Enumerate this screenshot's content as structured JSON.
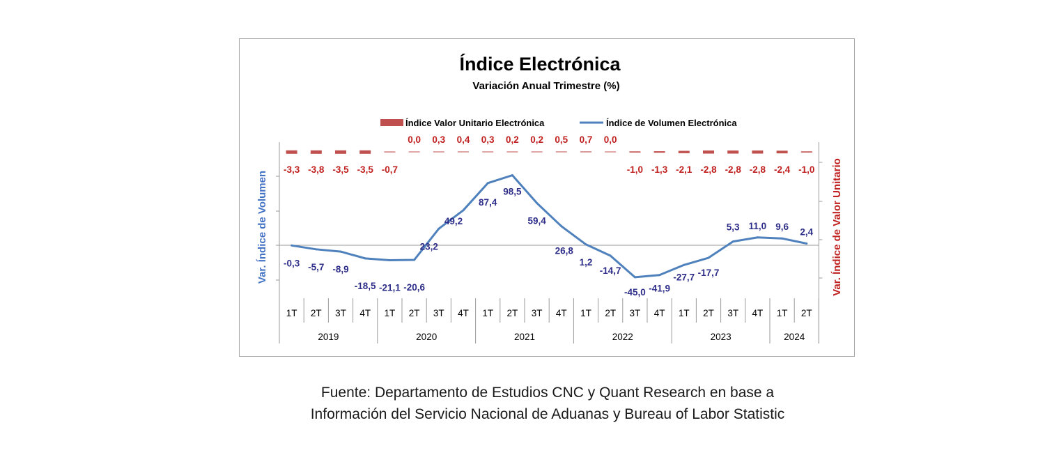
{
  "chart_data": {
    "type": "line",
    "title": "Índice Electrónica",
    "subtitle": "Variación Anual Trimestre  (%)",
    "categories": [
      "1T",
      "2T",
      "3T",
      "4T",
      "1T",
      "2T",
      "3T",
      "4T",
      "1T",
      "2T",
      "3T",
      "4T",
      "1T",
      "2T",
      "3T",
      "4T",
      "1T",
      "2T",
      "3T",
      "4T",
      "1T",
      "2T"
    ],
    "years": [
      {
        "label": "2019",
        "quarters": 4
      },
      {
        "label": "2020",
        "quarters": 4
      },
      {
        "label": "2021",
        "quarters": 4
      },
      {
        "label": "2022",
        "quarters": 4
      },
      {
        "label": "2023",
        "quarters": 4
      },
      {
        "label": "2024",
        "quarters": 2
      }
    ],
    "ylabel_left": "Var. Índice de Volumen",
    "ylabel_right": "Var. Índice de Valor Unitario",
    "legend_position": "top",
    "grid": false,
    "series": [
      {
        "name": "Índice Valor Unitario Electrónica",
        "axis": "right",
        "style": "dash",
        "color": "#c0504d",
        "values": [
          -3.3,
          -3.8,
          -3.5,
          -3.5,
          -0.7,
          0.0,
          0.3,
          0.4,
          0.3,
          0.2,
          0.2,
          0.5,
          0.7,
          0.0,
          -1.0,
          -1.3,
          -2.1,
          -2.8,
          -2.8,
          -2.8,
          -2.4,
          -1.0
        ],
        "labels": [
          "-3,3",
          "-3,8",
          "-3,5",
          "-3,5",
          "-0,7",
          "0,0",
          "0,3",
          "0,4",
          "0,3",
          "0,2",
          "0,2",
          "0,5",
          "0,7",
          "0,0",
          "-1,0",
          "-1,3",
          "-2,1",
          "-2,8",
          "-2,8",
          "-2,8",
          "-2,4",
          "-1,0"
        ]
      },
      {
        "name": "Índice de Volumen Electrónica",
        "axis": "left",
        "style": "line",
        "color": "#4f81bd",
        "values": [
          -0.3,
          -5.7,
          -8.9,
          -18.5,
          -21.1,
          -20.6,
          23.2,
          49.2,
          87.4,
          98.5,
          59.4,
          26.8,
          1.2,
          -14.7,
          -45.0,
          -41.9,
          -27.7,
          -17.7,
          5.3,
          11.0,
          9.6,
          2.4
        ],
        "labels": [
          "-0,3",
          "-5,7",
          "-8,9",
          "-18,5",
          "-21,1",
          "-20,6",
          "23,2",
          "49,2",
          "87,4",
          "98,5",
          "59,4",
          "26,8",
          "1,2",
          "-14,7",
          "-45,0",
          "-41,9",
          "-27,7",
          "-17,7",
          "5,3",
          "11,0",
          "9,6",
          "2,4"
        ]
      }
    ]
  },
  "source": {
    "line1": "Fuente: Departamento de Estudios CNC y Quant Research en base a",
    "line2": "Información del Servicio Nacional de Aduanas y Bureau of Labor Statistic"
  }
}
